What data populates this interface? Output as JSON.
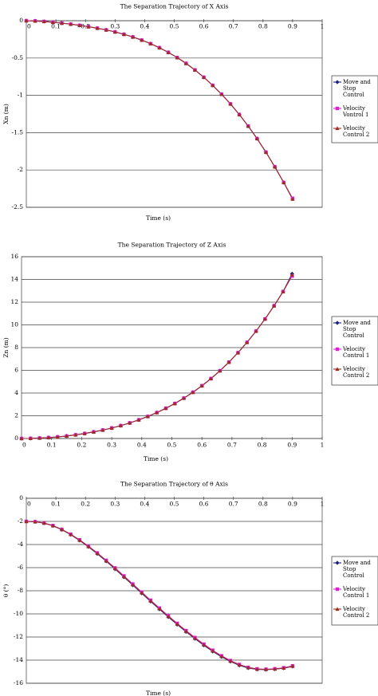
{
  "chart_data": [
    {
      "type": "line",
      "title": "The Separation Trajectory of X Axis",
      "xlabel": "Time (s)",
      "ylabel": "Xn (m)",
      "xlim": [
        0,
        1
      ],
      "ylim": [
        -2.5,
        0
      ],
      "xticks": [
        "0",
        "0.1",
        "0.2",
        "0.3",
        "0.4",
        "0.5",
        "0.6",
        "0.7",
        "0.8",
        "0.9",
        "1"
      ],
      "yticks": [
        "0",
        "-0.5",
        "-1",
        "-1.5",
        "-2",
        "-2.5"
      ],
      "grid": "horizontal",
      "legend_position": "right",
      "x": [
        0.0,
        0.03,
        0.06,
        0.09,
        0.12,
        0.15,
        0.18,
        0.21,
        0.24,
        0.27,
        0.3,
        0.33,
        0.36,
        0.39,
        0.42,
        0.45,
        0.48,
        0.51,
        0.54,
        0.57,
        0.6,
        0.63,
        0.66,
        0.69,
        0.72,
        0.75,
        0.78,
        0.81,
        0.84,
        0.87,
        0.9
      ],
      "series": [
        {
          "name": "Move and Stop Control",
          "color": "#1a237e",
          "marker": "diamond",
          "values": [
            0.0,
            -0.003,
            -0.01,
            -0.02,
            -0.032,
            -0.046,
            -0.062,
            -0.08,
            -0.1,
            -0.123,
            -0.15,
            -0.182,
            -0.218,
            -0.26,
            -0.308,
            -0.362,
            -0.424,
            -0.494,
            -0.572,
            -0.66,
            -0.758,
            -0.866,
            -0.985,
            -1.115,
            -1.257,
            -1.412,
            -1.58,
            -1.762,
            -1.958,
            -2.168,
            -2.39
          ]
        },
        {
          "name": "Velocity Vontrol 1",
          "color": "#e020d8",
          "marker": "square",
          "values": [
            0.0,
            -0.003,
            -0.01,
            -0.02,
            -0.032,
            -0.046,
            -0.062,
            -0.08,
            -0.1,
            -0.123,
            -0.15,
            -0.182,
            -0.218,
            -0.26,
            -0.308,
            -0.362,
            -0.424,
            -0.494,
            -0.572,
            -0.66,
            -0.758,
            -0.866,
            -0.985,
            -1.115,
            -1.257,
            -1.412,
            -1.58,
            -1.762,
            -1.958,
            -2.168,
            -2.38
          ]
        },
        {
          "name": "Velocity Control 2",
          "color": "#9b2d1f",
          "marker": "triangle",
          "values": [
            0.0,
            -0.003,
            -0.01,
            -0.02,
            -0.032,
            -0.046,
            -0.062,
            -0.08,
            -0.1,
            -0.123,
            -0.15,
            -0.182,
            -0.218,
            -0.26,
            -0.308,
            -0.362,
            -0.424,
            -0.494,
            -0.572,
            -0.66,
            -0.758,
            -0.866,
            -0.985,
            -1.115,
            -1.257,
            -1.412,
            -1.58,
            -1.762,
            -1.958,
            -2.168,
            -2.39
          ]
        }
      ],
      "legend_labels": [
        [
          "Move and",
          "Stop",
          "Control"
        ],
        [
          "Velocity",
          "Vontrol 1"
        ],
        [
          "Velocity",
          "Control 2"
        ]
      ]
    },
    {
      "type": "line",
      "title": "The Separation Trajectory of Z Axis",
      "xlabel": "Time (s)",
      "ylabel": "Zn (m)",
      "xlim": [
        0,
        1
      ],
      "ylim": [
        0,
        16
      ],
      "xticks": [
        "0",
        "0.1",
        "0.2",
        "0.3",
        "0.4",
        "0.5",
        "0.6",
        "0.7",
        "0.8",
        "0.9",
        "1"
      ],
      "yticks": [
        "16",
        "14",
        "12",
        "10",
        "8",
        "6",
        "4",
        "2",
        "0"
      ],
      "grid": "horizontal",
      "legend_position": "right",
      "x": [
        0.0,
        0.03,
        0.06,
        0.09,
        0.12,
        0.15,
        0.18,
        0.21,
        0.24,
        0.27,
        0.3,
        0.33,
        0.36,
        0.39,
        0.42,
        0.45,
        0.48,
        0.51,
        0.54,
        0.57,
        0.6,
        0.63,
        0.66,
        0.69,
        0.72,
        0.75,
        0.78,
        0.81,
        0.84,
        0.87,
        0.9
      ],
      "series": [
        {
          "name": "Move and Stop Control",
          "color": "#1a237e",
          "marker": "diamond",
          "values": [
            0.0,
            0.01,
            0.04,
            0.08,
            0.14,
            0.22,
            0.32,
            0.44,
            0.58,
            0.74,
            0.92,
            1.13,
            1.37,
            1.64,
            1.94,
            2.28,
            2.66,
            3.08,
            3.55,
            4.07,
            4.64,
            5.27,
            5.96,
            6.72,
            7.55,
            8.46,
            9.45,
            10.52,
            11.68,
            12.93,
            14.5
          ]
        },
        {
          "name": "Velocity Control 1",
          "color": "#e020d8",
          "marker": "square",
          "values": [
            0.0,
            0.01,
            0.04,
            0.08,
            0.14,
            0.22,
            0.32,
            0.44,
            0.58,
            0.74,
            0.92,
            1.13,
            1.37,
            1.64,
            1.94,
            2.28,
            2.66,
            3.08,
            3.55,
            4.07,
            4.64,
            5.27,
            5.96,
            6.72,
            7.55,
            8.46,
            9.45,
            10.52,
            11.68,
            12.93,
            14.3
          ]
        },
        {
          "name": "Velocity Control 2",
          "color": "#9b2d1f",
          "marker": "triangle",
          "values": [
            0.0,
            0.01,
            0.04,
            0.08,
            0.14,
            0.22,
            0.32,
            0.44,
            0.58,
            0.74,
            0.92,
            1.13,
            1.37,
            1.64,
            1.94,
            2.28,
            2.66,
            3.08,
            3.55,
            4.07,
            4.64,
            5.27,
            5.96,
            6.72,
            7.55,
            8.46,
            9.45,
            10.52,
            11.68,
            12.93,
            14.4
          ]
        }
      ],
      "legend_labels": [
        [
          "Move and",
          "Stop",
          "Control"
        ],
        [
          "Velocity",
          "Control 1"
        ],
        [
          "Velocity",
          "Control 2"
        ]
      ]
    },
    {
      "type": "line",
      "title": "The Separation Trajectory of θ Axis",
      "xlabel": "Time (s)",
      "ylabel": "θ (°)",
      "xlim": [
        0,
        1
      ],
      "ylim": [
        -16,
        0
      ],
      "xticks": [
        "0",
        "0.1",
        "0.2",
        "0.3",
        "0.4",
        "0.5",
        "0.6",
        "0.7",
        "0.8",
        "0.9",
        "1"
      ],
      "yticks": [
        "0",
        "-2",
        "-4",
        "-6",
        "-8",
        "-10",
        "-12",
        "-14",
        "-16"
      ],
      "grid": "horizontal",
      "legend_position": "right",
      "x": [
        0.0,
        0.03,
        0.06,
        0.09,
        0.12,
        0.15,
        0.18,
        0.21,
        0.24,
        0.27,
        0.3,
        0.33,
        0.36,
        0.39,
        0.42,
        0.45,
        0.48,
        0.51,
        0.54,
        0.57,
        0.6,
        0.63,
        0.66,
        0.69,
        0.72,
        0.75,
        0.78,
        0.81,
        0.84,
        0.87,
        0.9
      ],
      "series": [
        {
          "name": "Move and Stop Control",
          "color": "#1a237e",
          "marker": "diamond",
          "values": [
            -2.0,
            -2.03,
            -2.15,
            -2.38,
            -2.72,
            -3.15,
            -3.65,
            -4.2,
            -4.8,
            -5.45,
            -6.12,
            -6.82,
            -7.52,
            -8.22,
            -8.92,
            -9.6,
            -10.27,
            -10.92,
            -11.55,
            -12.15,
            -12.72,
            -13.25,
            -13.72,
            -14.12,
            -14.45,
            -14.68,
            -14.8,
            -14.82,
            -14.78,
            -14.7,
            -14.55
          ]
        },
        {
          "name": "Velocity Control 1",
          "color": "#e020d8",
          "marker": "square",
          "values": [
            -2.0,
            -2.03,
            -2.14,
            -2.36,
            -2.69,
            -3.11,
            -3.6,
            -4.14,
            -4.73,
            -5.37,
            -6.03,
            -6.72,
            -7.42,
            -8.12,
            -8.82,
            -9.5,
            -10.17,
            -10.82,
            -11.45,
            -12.05,
            -12.62,
            -13.15,
            -13.63,
            -14.04,
            -14.38,
            -14.63,
            -14.76,
            -14.79,
            -14.75,
            -14.66,
            -14.5
          ]
        },
        {
          "name": "Velocity Control 2",
          "color": "#9b2d1f",
          "marker": "triangle",
          "values": [
            -2.0,
            -2.03,
            -2.14,
            -2.37,
            -2.7,
            -3.13,
            -3.62,
            -4.17,
            -4.76,
            -5.41,
            -6.07,
            -6.77,
            -7.47,
            -8.17,
            -8.87,
            -9.55,
            -10.22,
            -10.87,
            -11.5,
            -12.1,
            -12.67,
            -13.2,
            -13.67,
            -14.08,
            -14.41,
            -14.65,
            -14.78,
            -14.8,
            -14.77,
            -14.68,
            -14.52
          ]
        }
      ],
      "legend_labels": [
        [
          "Move and",
          "Stop",
          "Control"
        ],
        [
          "Velocity",
          "Control 1"
        ],
        [
          "Velocity",
          "Control 2"
        ]
      ]
    }
  ]
}
